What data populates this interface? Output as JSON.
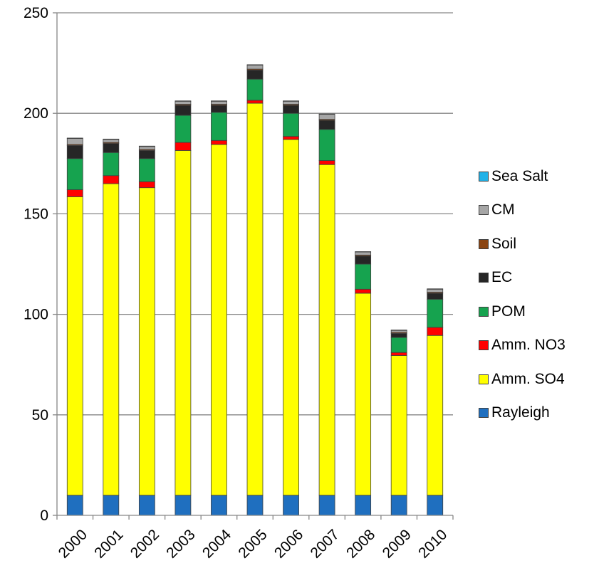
{
  "chart_data": {
    "type": "bar",
    "stacked": true,
    "categories": [
      "2000",
      "2001",
      "2002",
      "2003",
      "2004",
      "2005",
      "2006",
      "2007",
      "2008",
      "2009",
      "2010"
    ],
    "ylim": [
      0,
      250
    ],
    "yticks": [
      "0",
      "50",
      "100",
      "150",
      "200",
      "250"
    ],
    "grid": true,
    "legend_position": "right",
    "series": [
      {
        "name": "Rayleigh",
        "color": "#1F6FBF",
        "values": [
          10,
          10,
          10,
          10,
          10,
          10,
          10,
          10,
          10,
          10,
          10
        ]
      },
      {
        "name": "Amm. SO4",
        "color": "#FFFF00",
        "values": [
          148.5,
          155,
          153,
          171.5,
          174.5,
          195,
          177,
          164.5,
          100.5,
          69.5,
          79.5
        ]
      },
      {
        "name": "Amm. NO3",
        "color": "#FF0000",
        "values": [
          3.5,
          4,
          3,
          4,
          2,
          1.5,
          1.5,
          2,
          2,
          1.5,
          4
        ]
      },
      {
        "name": "POM",
        "color": "#16A34F",
        "values": [
          15.5,
          11.5,
          11.5,
          13.5,
          14,
          10.5,
          11.5,
          15.5,
          12.5,
          7.5,
          14
        ]
      },
      {
        "name": "EC",
        "color": "#262626",
        "values": [
          6.5,
          4.5,
          4,
          5,
          3.5,
          4.5,
          4,
          4.5,
          4,
          2,
          3
        ]
      },
      {
        "name": "Soil",
        "color": "#8B4513",
        "values": [
          0.5,
          0.5,
          0.5,
          0.5,
          0.5,
          0.5,
          0.5,
          0.5,
          0.5,
          0.5,
          0.5
        ]
      },
      {
        "name": "CM",
        "color": "#A6A6A6",
        "values": [
          3,
          1.5,
          1.5,
          1.5,
          1.5,
          2,
          1.5,
          2.5,
          1.5,
          1,
          1.5
        ]
      },
      {
        "name": "Sea Salt",
        "color": "#22B2E8",
        "values": [
          0.2,
          0.2,
          0.2,
          0.2,
          0.2,
          0.2,
          0.2,
          0.2,
          0.2,
          0.2,
          0.2
        ]
      }
    ],
    "legend_order": [
      "Sea Salt",
      "CM",
      "Soil",
      "EC",
      "POM",
      "Amm. NO3",
      "Amm. SO4",
      "Rayleigh"
    ]
  }
}
